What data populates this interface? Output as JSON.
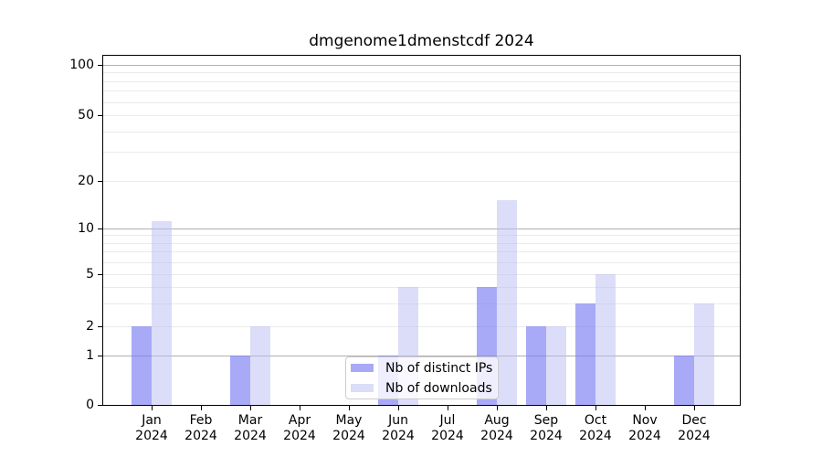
{
  "chart_data": {
    "type": "bar",
    "title": "dmgenome1dmenstcdf 2024",
    "categories": [
      "Jan",
      "Feb",
      "Mar",
      "Apr",
      "May",
      "Jun",
      "Jul",
      "Aug",
      "Sep",
      "Oct",
      "Nov",
      "Dec"
    ],
    "year": "2024",
    "series": [
      {
        "name": "Nb of distinct IPs",
        "color": "rgba(122,124,243,0.65)",
        "color_hex_on_white": "#a9aaf6",
        "values": [
          2,
          0,
          1,
          0,
          0,
          1,
          0,
          4,
          2,
          3,
          0,
          1
        ]
      },
      {
        "name": "Nb of downloads",
        "color": "rgba(185,187,241,0.5)",
        "color_hex_on_white": "#dcddf8",
        "values": [
          11,
          0,
          2,
          0,
          0,
          4,
          0,
          15,
          2,
          5,
          0,
          3
        ]
      }
    ],
    "y_axis": {
      "scale": "symlog",
      "tick_values": [
        0,
        1,
        2,
        5,
        10,
        20,
        50,
        100
      ],
      "tick_labels": [
        "0",
        "1",
        "2",
        "5",
        "10",
        "20",
        "50",
        "100"
      ],
      "major_gridlines": [
        1,
        10,
        100
      ],
      "minor_gridlines": [
        2,
        3,
        4,
        5,
        6,
        7,
        8,
        9,
        20,
        30,
        40,
        50,
        60,
        70,
        80,
        90
      ],
      "ylim": [
        0,
        113
      ],
      "grid": true
    },
    "x_axis": {
      "gridlines": false
    },
    "legend": {
      "position": "lower center",
      "entries": [
        "Nb of distinct IPs",
        "Nb of downloads"
      ]
    },
    "colors": {
      "background": "#ffffff",
      "spine": "#000000",
      "major_grid": "#b0b0b0",
      "minor_grid": "#eaeaea",
      "text": "#000000",
      "legend_border": "#cccccc"
    }
  }
}
